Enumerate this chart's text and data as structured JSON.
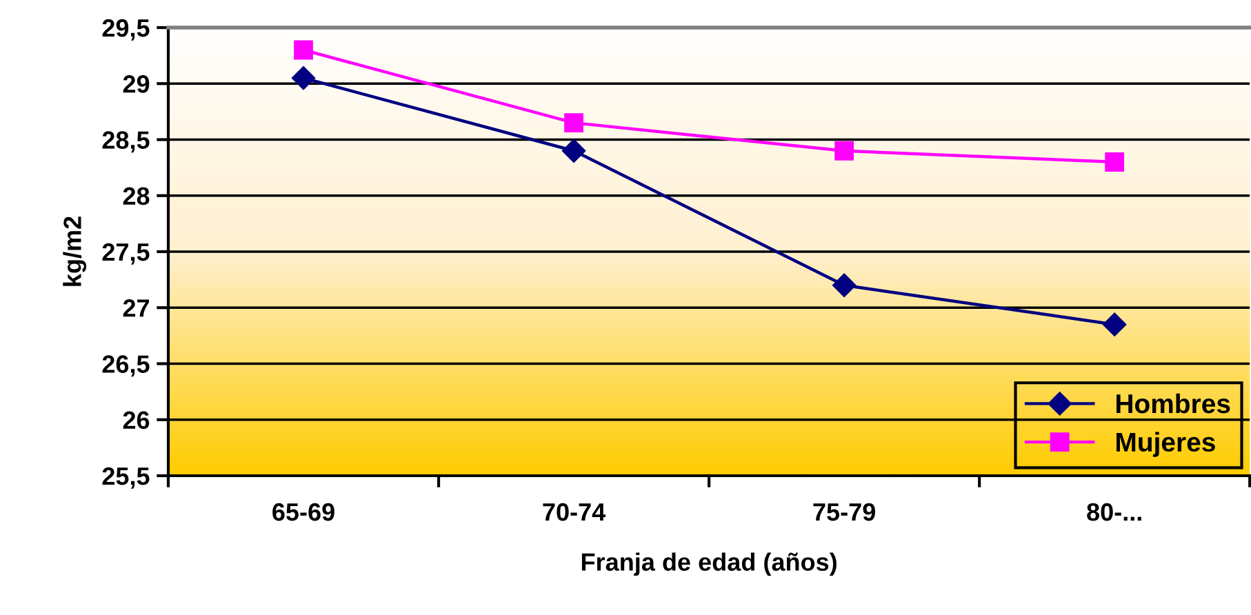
{
  "chart_data": {
    "type": "line",
    "xlabel": "Franja de edad (años)",
    "ylabel": "kg/m2",
    "categories": [
      "65-69",
      "70-74",
      "75-79",
      "80-..."
    ],
    "series": [
      {
        "name": "Hombres",
        "color": "#000080",
        "marker": "diamond",
        "values": [
          29.05,
          28.4,
          27.2,
          26.85
        ]
      },
      {
        "name": "Mujeres",
        "color": "#ff00ff",
        "marker": "square",
        "values": [
          29.3,
          28.65,
          28.4,
          28.3
        ]
      }
    ],
    "ylim": [
      25.5,
      29.5
    ],
    "yticks": [
      {
        "value": 25.5,
        "label": "25,5"
      },
      26,
      {
        "value": 26.5,
        "label": "26,5"
      },
      27,
      {
        "value": 27.5,
        "label": "27,5"
      },
      28,
      {
        "value": 28.5,
        "label": "28,5"
      },
      29,
      {
        "value": 29.5,
        "label": "29,5"
      }
    ],
    "grid": "y",
    "legend": "bottom right",
    "line_style": "solid"
  }
}
